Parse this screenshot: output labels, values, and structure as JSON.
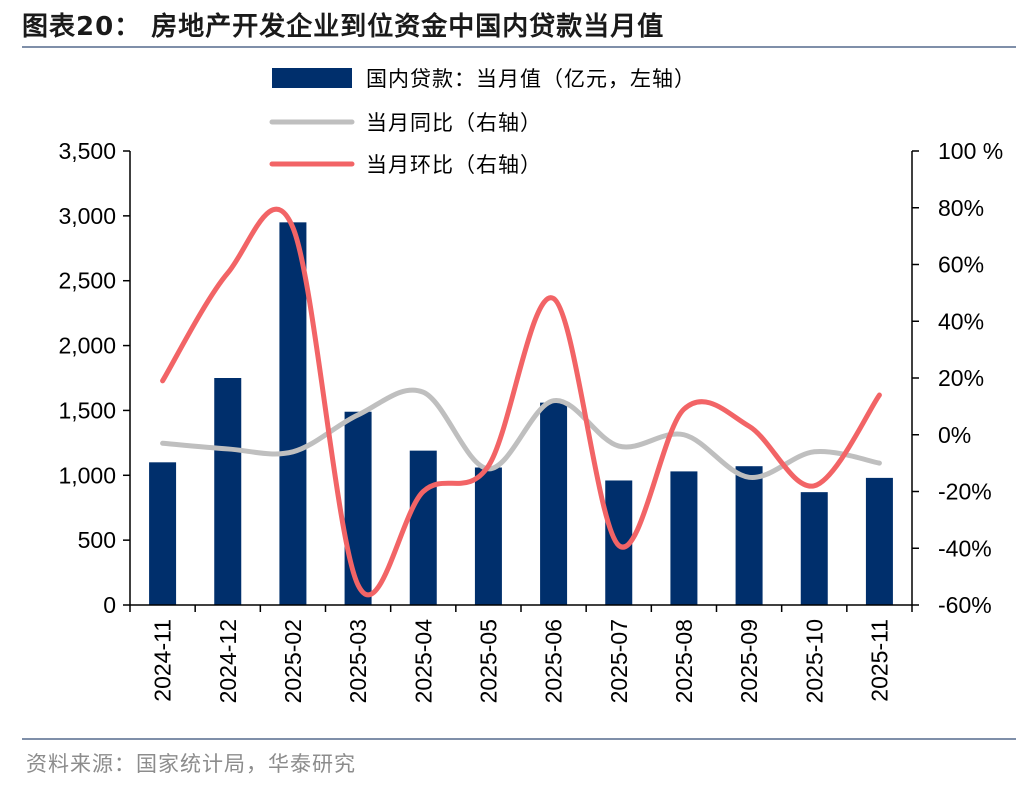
{
  "figure": {
    "title": "图表20：   房地产开发企业到位资金中国内贷款当月值",
    "source": "资料来源：国家统计局，华泰研究"
  },
  "chart_data": {
    "type": "bar",
    "categories": [
      "2024-11",
      "2024-12",
      "2025-02",
      "2025-03",
      "2025-04",
      "2025-05",
      "2025-06",
      "2025-07",
      "2025-08",
      "2025-09",
      "2025-10",
      "2025-11"
    ],
    "series": [
      {
        "name": "国内贷款：当月值（亿元，左轴）",
        "type": "bar",
        "axis": "left",
        "color": "#002f6c",
        "values": [
          1100,
          1750,
          2950,
          1490,
          1190,
          1060,
          1560,
          960,
          1030,
          1070,
          870,
          980
        ]
      },
      {
        "name": "当月同比（右轴）",
        "type": "line",
        "axis": "right",
        "color": "#bfbfbf",
        "values": [
          -3,
          -5,
          -6,
          7,
          15,
          -12,
          12,
          -4,
          0,
          -15,
          -6,
          -10
        ]
      },
      {
        "name": "当月环比（右轴）",
        "type": "line",
        "axis": "right",
        "color": "#f26466",
        "values": [
          19,
          57,
          73,
          -53,
          -20,
          -11,
          48,
          -39,
          9,
          3,
          -18,
          14
        ]
      }
    ],
    "left_axis": {
      "min": 0,
      "max": 3500,
      "ticks": [
        "0",
        "500",
        "1,000",
        "1,500",
        "2,000",
        "2,500",
        "3,000",
        "3,500"
      ]
    },
    "right_axis": {
      "min": -60,
      "max": 100,
      "ticks": [
        "-60%",
        "-40%",
        "-20%",
        "0%",
        "20%",
        "40%",
        "60%",
        "80%",
        "100 %"
      ]
    },
    "legend_position": "top-center",
    "grid": false
  }
}
